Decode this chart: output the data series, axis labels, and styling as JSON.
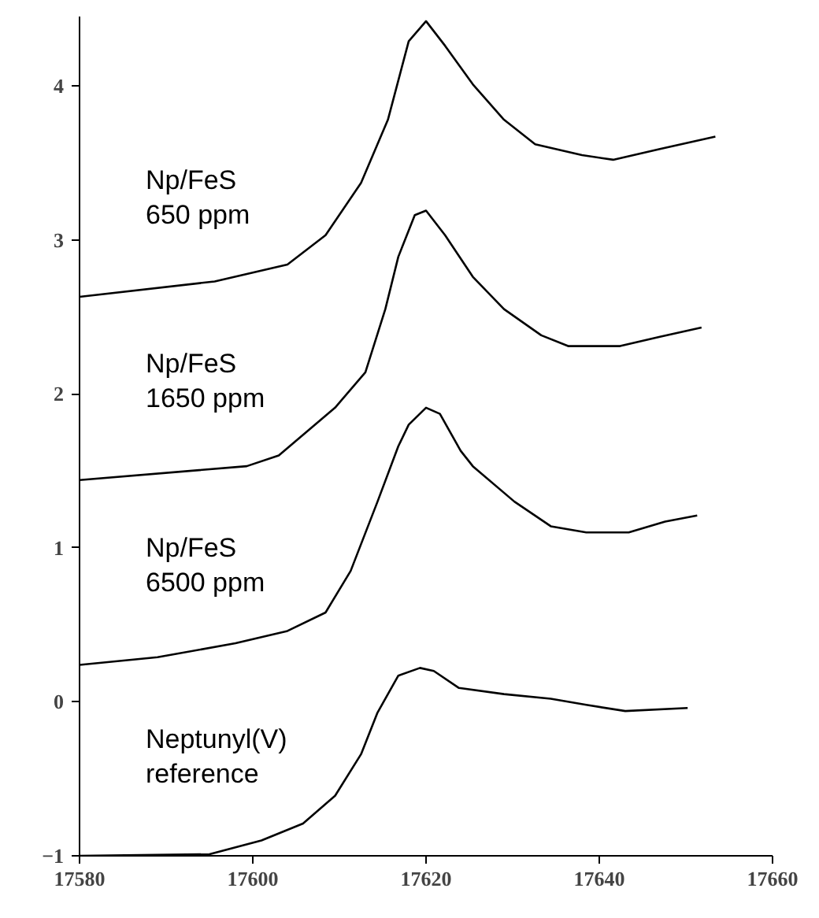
{
  "chart_data": {
    "type": "line",
    "xlim": [
      17580,
      17660
    ],
    "ylim": [
      -1,
      4.45
    ],
    "xticks": [
      17580,
      17600,
      17620,
      17640,
      17660
    ],
    "yticks": [
      -1,
      0,
      1,
      2,
      3,
      4
    ],
    "grid": false,
    "legend": false,
    "marker": "none",
    "line_style": "solid",
    "series": [
      {
        "name": "Np/FeS\n650 ppm",
        "color": "#000000",
        "x": [
          17580,
          17595.6,
          17604,
          17608.4,
          17612.5,
          17615.6,
          17618,
          17620,
          17622.2,
          17625.4,
          17629,
          17632.6,
          17638,
          17641.6,
          17647,
          17653.4
        ],
        "values": [
          2.63,
          2.73,
          2.84,
          3.03,
          3.37,
          3.78,
          4.29,
          4.42,
          4.26,
          4.01,
          3.78,
          3.62,
          3.55,
          3.52,
          3.59,
          3.67
        ]
      },
      {
        "name": "Np/FeS\n1650 ppm",
        "color": "#000000",
        "x": [
          17580,
          17599.3,
          17603,
          17609.5,
          17613,
          17615.3,
          17616.8,
          17618.7,
          17620,
          17622.2,
          17625.4,
          17629,
          17633.3,
          17636.4,
          17642.4,
          17647,
          17651.8
        ],
        "values": [
          1.44,
          1.53,
          1.6,
          1.91,
          2.14,
          2.55,
          2.89,
          3.16,
          3.19,
          3.03,
          2.76,
          2.55,
          2.38,
          2.31,
          2.31,
          2.37,
          2.43
        ]
      },
      {
        "name": "Np/FeS\n6500 ppm",
        "color": "#000000",
        "x": [
          17580,
          17589,
          17598,
          17604,
          17608.4,
          17611.3,
          17614.4,
          17616.8,
          17618,
          17620,
          17621.6,
          17624,
          17625.4,
          17630.2,
          17634.4,
          17638.5,
          17643.4,
          17647.6,
          17651.3
        ],
        "values": [
          0.24,
          0.29,
          0.38,
          0.46,
          0.58,
          0.85,
          1.3,
          1.66,
          1.8,
          1.91,
          1.87,
          1.63,
          1.53,
          1.3,
          1.14,
          1.1,
          1.1,
          1.17,
          1.21
        ]
      },
      {
        "name": "Neptunyl(V)\nreference",
        "color": "#000000",
        "x": [
          17580,
          17595,
          17601,
          17605.8,
          17609.5,
          17612.5,
          17614.4,
          17616.8,
          17619.3,
          17620.9,
          17623.8,
          17629,
          17634.4,
          17638.5,
          17643,
          17650.2
        ],
        "values": [
          -1.0,
          -0.99,
          -0.9,
          -0.79,
          -0.61,
          -0.34,
          -0.07,
          0.17,
          0.22,
          0.2,
          0.09,
          0.05,
          0.02,
          -0.02,
          -0.06,
          -0.04
        ]
      }
    ]
  }
}
